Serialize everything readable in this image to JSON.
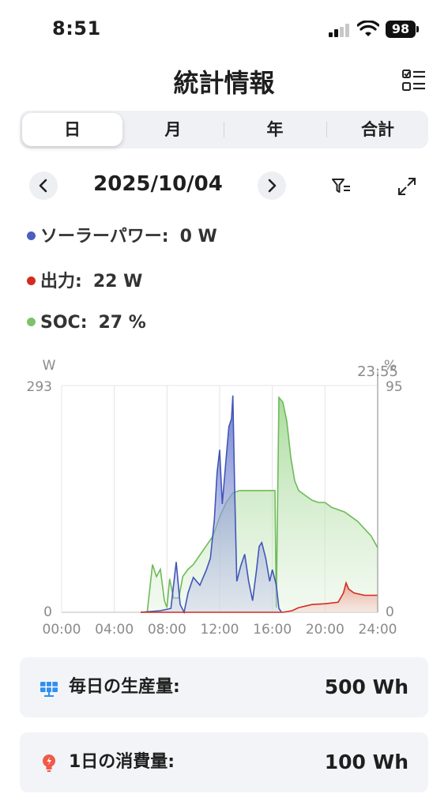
{
  "status": {
    "time": "8:51",
    "battery": "98"
  },
  "header": {
    "title": "統計情報",
    "list_icon": "checklist-icon"
  },
  "tabs": [
    {
      "label": "日",
      "active": true
    },
    {
      "label": "月",
      "active": false
    },
    {
      "label": "年",
      "active": false
    },
    {
      "label": "合計",
      "active": false
    }
  ],
  "date_nav": {
    "date": "2025/10/04",
    "prev_icon": "chevron-left-icon",
    "next_icon": "chevron-right-icon",
    "filter_icon": "filter-icon",
    "expand_icon": "expand-icon"
  },
  "legend": [
    {
      "label": "ソーラーパワー:",
      "value": "0 W",
      "color": "#4c5fbf"
    },
    {
      "label": "出力:",
      "value": "22 W",
      "color": "#d62a1e"
    },
    {
      "label": "SOC:",
      "value": "27 %",
      "color": "#7dc26b"
    }
  ],
  "chart_data": {
    "type": "area",
    "left_axis": {
      "unit": "W",
      "min": 0,
      "max": 293,
      "ticks": [
        "293",
        "0"
      ]
    },
    "right_axis": {
      "unit": "%",
      "min": 0,
      "max": 95,
      "ticks": [
        "95",
        "0"
      ]
    },
    "cursor_label": "23:55",
    "x_ticks": [
      "00:00",
      "04:00",
      "08:00",
      "12:00",
      "16:00",
      "20:00",
      "24:00"
    ],
    "x_range_hours": [
      0,
      24
    ],
    "series": [
      {
        "name": "ソーラーパワー",
        "axis": "left",
        "color": "#4c5fbf",
        "points": [
          [
            6.0,
            0
          ],
          [
            7.5,
            2
          ],
          [
            8.3,
            5
          ],
          [
            8.7,
            65
          ],
          [
            9.0,
            10
          ],
          [
            9.3,
            0
          ],
          [
            9.6,
            25
          ],
          [
            10.0,
            45
          ],
          [
            10.5,
            35
          ],
          [
            11.0,
            55
          ],
          [
            11.3,
            70
          ],
          [
            11.6,
            120
          ],
          [
            11.8,
            180
          ],
          [
            12.0,
            210
          ],
          [
            12.2,
            140
          ],
          [
            12.5,
            200
          ],
          [
            12.7,
            240
          ],
          [
            12.9,
            250
          ],
          [
            13.0,
            280
          ],
          [
            13.15,
            150
          ],
          [
            13.3,
            40
          ],
          [
            13.6,
            60
          ],
          [
            13.9,
            75
          ],
          [
            14.2,
            40
          ],
          [
            14.5,
            15
          ],
          [
            14.8,
            55
          ],
          [
            15.0,
            85
          ],
          [
            15.2,
            90
          ],
          [
            15.5,
            70
          ],
          [
            15.8,
            40
          ],
          [
            16.0,
            55
          ],
          [
            16.3,
            35
          ],
          [
            16.5,
            5
          ],
          [
            16.7,
            0
          ]
        ]
      },
      {
        "name": "出力",
        "axis": "left",
        "color": "#d62a1e",
        "points": [
          [
            6.0,
            0
          ],
          [
            8.0,
            0
          ],
          [
            12.0,
            0
          ],
          [
            16.0,
            0
          ],
          [
            16.8,
            0
          ],
          [
            17.5,
            2
          ],
          [
            18.0,
            6
          ],
          [
            19.0,
            10
          ],
          [
            20.0,
            11
          ],
          [
            21.0,
            13
          ],
          [
            21.4,
            25
          ],
          [
            21.6,
            38
          ],
          [
            21.8,
            30
          ],
          [
            22.2,
            25
          ],
          [
            23.0,
            22
          ],
          [
            24.0,
            22
          ]
        ]
      },
      {
        "name": "SOC",
        "axis": "right",
        "color": "#7dc26b",
        "points": [
          [
            6.5,
            0
          ],
          [
            6.9,
            20
          ],
          [
            7.2,
            15
          ],
          [
            7.5,
            18
          ],
          [
            7.8,
            5
          ],
          [
            8.0,
            2
          ],
          [
            8.2,
            14
          ],
          [
            8.5,
            6
          ],
          [
            8.9,
            6
          ],
          [
            9.2,
            15
          ],
          [
            9.6,
            18
          ],
          [
            10.0,
            20
          ],
          [
            10.5,
            24
          ],
          [
            11.0,
            28
          ],
          [
            11.5,
            32
          ],
          [
            12.0,
            40
          ],
          [
            12.5,
            46
          ],
          [
            13.0,
            50
          ],
          [
            13.5,
            51
          ],
          [
            14.0,
            51
          ],
          [
            15.0,
            51
          ],
          [
            16.0,
            51
          ],
          [
            16.2,
            51
          ],
          [
            16.3,
            2
          ],
          [
            16.5,
            90
          ],
          [
            16.8,
            88
          ],
          [
            17.1,
            80
          ],
          [
            17.4,
            65
          ],
          [
            17.7,
            55
          ],
          [
            18.0,
            51
          ],
          [
            18.5,
            49
          ],
          [
            19.0,
            47
          ],
          [
            19.5,
            46
          ],
          [
            20.0,
            46
          ],
          [
            20.5,
            44
          ],
          [
            21.0,
            43
          ],
          [
            21.5,
            42
          ],
          [
            22.0,
            40
          ],
          [
            22.5,
            38
          ],
          [
            23.0,
            35
          ],
          [
            23.5,
            32
          ],
          [
            23.8,
            29
          ],
          [
            24.0,
            27
          ]
        ]
      }
    ]
  },
  "cards": [
    {
      "label": "毎日の生産量:",
      "value": "500 Wh",
      "icon": "solar-panel-icon"
    },
    {
      "label": "1日の消費量:",
      "value": "100 Wh",
      "icon": "lightbulb-icon"
    }
  ]
}
